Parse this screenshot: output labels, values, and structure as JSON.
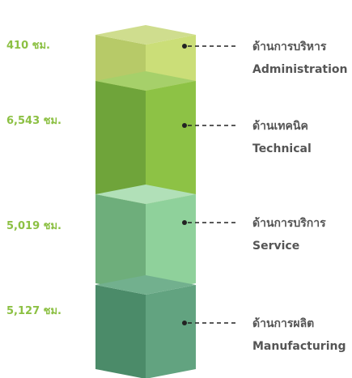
{
  "items": [
    {
      "hours": "410 ชม.",
      "name_th": "ด้านการบริหาร",
      "name_en": "Administration"
    },
    {
      "hours": "6,543 ชม.",
      "name_th": "ด้านเทคนิค",
      "name_en": "Technical"
    },
    {
      "hours": "5,019 ชม.",
      "name_th": "ด้านการบริการ",
      "name_en": "Service"
    },
    {
      "hours": "5,127 ชม.",
      "name_th": "ด้านการผลิต",
      "name_en": "Manufacturing"
    }
  ]
}
